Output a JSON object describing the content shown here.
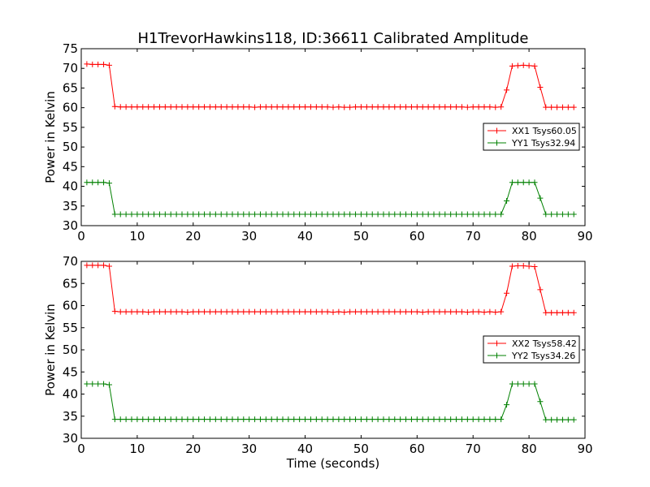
{
  "title": "H1TrevorHawkins118, ID:36611 Calibrated Amplitude",
  "xlabel": "Time (seconds)",
  "chart_data": [
    {
      "type": "line",
      "title": "H1TrevorHawkins118, ID:36611 Calibrated Amplitude",
      "xlabel": "",
      "ylabel": "Power in Kelvin",
      "xlim": [
        0,
        90
      ],
      "ylim": [
        30,
        75
      ],
      "xticks": [
        0,
        10,
        20,
        30,
        40,
        50,
        60,
        70,
        80,
        90
      ],
      "yticks": [
        30,
        35,
        40,
        45,
        50,
        55,
        60,
        65,
        70,
        75
      ],
      "grid": false,
      "legend": "center-right",
      "x": [
        1,
        2,
        3,
        4,
        5,
        6,
        7,
        8,
        9,
        10,
        11,
        12,
        13,
        14,
        15,
        16,
        17,
        18,
        19,
        20,
        21,
        22,
        23,
        24,
        25,
        26,
        27,
        28,
        29,
        30,
        31,
        32,
        33,
        34,
        35,
        36,
        37,
        38,
        39,
        40,
        41,
        42,
        43,
        44,
        45,
        46,
        47,
        48,
        49,
        50,
        51,
        52,
        53,
        54,
        55,
        56,
        57,
        58,
        59,
        60,
        61,
        62,
        63,
        64,
        65,
        66,
        67,
        68,
        69,
        70,
        71,
        72,
        73,
        74,
        75,
        76,
        77,
        78,
        79,
        80,
        81,
        82,
        83,
        84,
        85,
        86,
        87,
        88
      ],
      "series": [
        {
          "name": "XX1 Tsys60.05",
          "color": "#ff0000",
          "values": [
            71.1,
            71.0,
            71.0,
            71.0,
            70.8,
            60.3,
            60.2,
            60.2,
            60.2,
            60.2,
            60.2,
            60.2,
            60.2,
            60.2,
            60.2,
            60.2,
            60.2,
            60.2,
            60.2,
            60.2,
            60.2,
            60.2,
            60.2,
            60.2,
            60.2,
            60.2,
            60.2,
            60.2,
            60.2,
            60.2,
            60.1,
            60.2,
            60.2,
            60.2,
            60.2,
            60.2,
            60.2,
            60.2,
            60.2,
            60.2,
            60.2,
            60.2,
            60.2,
            60.2,
            60.1,
            60.2,
            60.1,
            60.1,
            60.2,
            60.2,
            60.2,
            60.2,
            60.2,
            60.2,
            60.2,
            60.2,
            60.2,
            60.2,
            60.2,
            60.2,
            60.2,
            60.2,
            60.2,
            60.2,
            60.2,
            60.2,
            60.2,
            60.2,
            60.1,
            60.2,
            60.2,
            60.2,
            60.2,
            60.1,
            60.2,
            64.5,
            70.6,
            70.7,
            70.8,
            70.7,
            70.6,
            65.2,
            60.1,
            60.1,
            60.1,
            60.1,
            60.1,
            60.1
          ]
        },
        {
          "name": "YY1 Tsys32.94",
          "color": "#008000",
          "values": [
            41.0,
            41.0,
            41.0,
            41.0,
            40.8,
            32.9,
            32.9,
            32.9,
            32.9,
            32.9,
            32.9,
            32.9,
            32.9,
            32.9,
            32.9,
            32.9,
            32.9,
            32.9,
            32.9,
            32.9,
            32.9,
            32.9,
            32.9,
            32.9,
            32.9,
            32.9,
            32.9,
            32.9,
            32.9,
            32.9,
            32.9,
            32.9,
            32.9,
            32.9,
            32.9,
            32.9,
            32.9,
            32.9,
            32.9,
            32.9,
            32.9,
            32.9,
            32.9,
            32.9,
            32.9,
            32.9,
            32.9,
            32.9,
            32.9,
            32.9,
            32.9,
            32.9,
            32.9,
            32.9,
            32.9,
            32.9,
            32.9,
            32.9,
            32.9,
            32.9,
            32.9,
            32.9,
            32.9,
            32.9,
            32.9,
            32.9,
            32.9,
            32.9,
            32.9,
            32.9,
            32.9,
            32.9,
            32.9,
            32.9,
            32.9,
            36.3,
            41.0,
            41.0,
            41.0,
            41.0,
            41.0,
            37.0,
            32.9,
            32.9,
            32.9,
            32.9,
            32.9,
            32.9
          ]
        }
      ]
    },
    {
      "type": "line",
      "title": "",
      "xlabel": "Time (seconds)",
      "ylabel": "Power in Kelvin",
      "xlim": [
        0,
        90
      ],
      "ylim": [
        30,
        70
      ],
      "xticks": [
        0,
        10,
        20,
        30,
        40,
        50,
        60,
        70,
        80,
        90
      ],
      "yticks": [
        30,
        35,
        40,
        45,
        50,
        55,
        60,
        65,
        70
      ],
      "grid": false,
      "legend": "center-right",
      "x": [
        1,
        2,
        3,
        4,
        5,
        6,
        7,
        8,
        9,
        10,
        11,
        12,
        13,
        14,
        15,
        16,
        17,
        18,
        19,
        20,
        21,
        22,
        23,
        24,
        25,
        26,
        27,
        28,
        29,
        30,
        31,
        32,
        33,
        34,
        35,
        36,
        37,
        38,
        39,
        40,
        41,
        42,
        43,
        44,
        45,
        46,
        47,
        48,
        49,
        50,
        51,
        52,
        53,
        54,
        55,
        56,
        57,
        58,
        59,
        60,
        61,
        62,
        63,
        64,
        65,
        66,
        67,
        68,
        69,
        70,
        71,
        72,
        73,
        74,
        75,
        76,
        77,
        78,
        79,
        80,
        81,
        82,
        83,
        84,
        85,
        86,
        87,
        88
      ],
      "series": [
        {
          "name": "XX2 Tsys58.42",
          "color": "#ff0000",
          "values": [
            69.1,
            69.1,
            69.1,
            69.1,
            68.9,
            58.7,
            58.6,
            58.6,
            58.6,
            58.6,
            58.6,
            58.5,
            58.6,
            58.6,
            58.6,
            58.6,
            58.6,
            58.6,
            58.5,
            58.6,
            58.6,
            58.6,
            58.6,
            58.6,
            58.6,
            58.6,
            58.6,
            58.6,
            58.6,
            58.6,
            58.6,
            58.6,
            58.6,
            58.6,
            58.6,
            58.6,
            58.6,
            58.6,
            58.6,
            58.6,
            58.6,
            58.6,
            58.6,
            58.6,
            58.5,
            58.6,
            58.5,
            58.6,
            58.6,
            58.6,
            58.6,
            58.6,
            58.6,
            58.6,
            58.6,
            58.6,
            58.6,
            58.6,
            58.6,
            58.6,
            58.5,
            58.6,
            58.6,
            58.6,
            58.6,
            58.6,
            58.6,
            58.6,
            58.5,
            58.6,
            58.6,
            58.5,
            58.6,
            58.5,
            58.6,
            62.8,
            68.9,
            69.0,
            69.0,
            68.9,
            68.8,
            63.6,
            58.4,
            58.4,
            58.4,
            58.4,
            58.4,
            58.4
          ]
        },
        {
          "name": "YY2 Tsys34.26",
          "color": "#008000",
          "values": [
            42.3,
            42.3,
            42.3,
            42.3,
            42.1,
            34.3,
            34.3,
            34.3,
            34.3,
            34.3,
            34.3,
            34.3,
            34.3,
            34.3,
            34.3,
            34.3,
            34.3,
            34.3,
            34.3,
            34.3,
            34.3,
            34.3,
            34.3,
            34.3,
            34.3,
            34.3,
            34.3,
            34.3,
            34.3,
            34.3,
            34.3,
            34.3,
            34.3,
            34.3,
            34.3,
            34.3,
            34.3,
            34.3,
            34.3,
            34.3,
            34.3,
            34.3,
            34.3,
            34.3,
            34.3,
            34.3,
            34.3,
            34.3,
            34.3,
            34.3,
            34.3,
            34.3,
            34.3,
            34.3,
            34.3,
            34.3,
            34.3,
            34.3,
            34.3,
            34.3,
            34.3,
            34.3,
            34.3,
            34.3,
            34.3,
            34.3,
            34.3,
            34.3,
            34.3,
            34.3,
            34.3,
            34.3,
            34.3,
            34.3,
            34.3,
            37.6,
            42.3,
            42.3,
            42.3,
            42.3,
            42.3,
            38.3,
            34.2,
            34.2,
            34.2,
            34.2,
            34.2,
            34.2
          ]
        }
      ]
    }
  ]
}
